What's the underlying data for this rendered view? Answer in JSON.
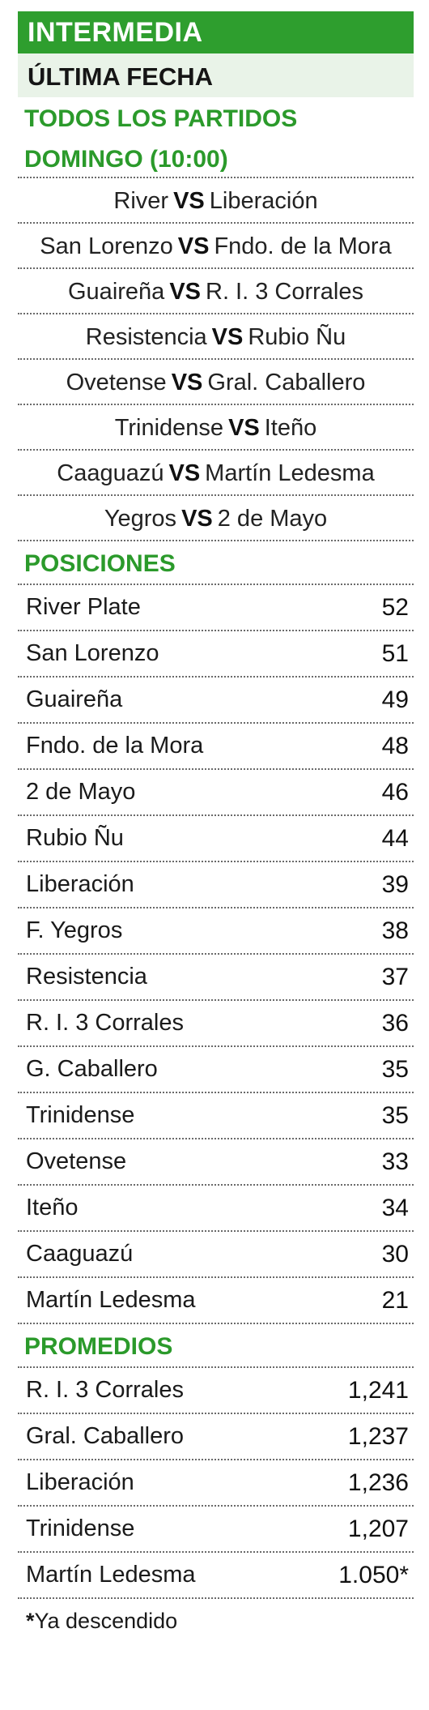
{
  "header": {
    "category": "INTERMEDIA",
    "subtitle": "ÚLTIMA FECHA"
  },
  "fixtures": {
    "title_line1": "TODOS LOS PARTIDOS",
    "title_line2": "DOMINGO (10:00)",
    "vs_label": "VS",
    "matches": [
      {
        "home": "River",
        "away": "Liberación"
      },
      {
        "home": "San Lorenzo",
        "away": "Fndo. de la Mora"
      },
      {
        "home": "Guaireña",
        "away": "R. I. 3 Corrales"
      },
      {
        "home": "Resistencia",
        "away": "Rubio Ñu"
      },
      {
        "home": "Ovetense",
        "away": "Gral. Caballero"
      },
      {
        "home": "Trinidense",
        "away": "Iteño"
      },
      {
        "home": "Caaguazú",
        "away": "Martín Ledesma"
      },
      {
        "home": "Yegros",
        "away": "2 de Mayo"
      }
    ]
  },
  "standings": {
    "title": "POSICIONES",
    "rows": [
      {
        "team": "River Plate",
        "points": "52"
      },
      {
        "team": "San Lorenzo",
        "points": "51"
      },
      {
        "team": "Guaireña",
        "points": "49"
      },
      {
        "team": "Fndo. de la Mora",
        "points": "48"
      },
      {
        "team": "2 de Mayo",
        "points": "46"
      },
      {
        "team": "Rubio Ñu",
        "points": "44"
      },
      {
        "team": "Liberación",
        "points": "39"
      },
      {
        "team": "F. Yegros",
        "points": "38"
      },
      {
        "team": "Resistencia",
        "points": "37"
      },
      {
        "team": "R. I. 3 Corrales",
        "points": "36"
      },
      {
        "team": "G. Caballero",
        "points": "35"
      },
      {
        "team": "Trinidense",
        "points": "35"
      },
      {
        "team": "Ovetense",
        "points": "33"
      },
      {
        "team": "Iteño",
        "points": "34"
      },
      {
        "team": "Caaguazú",
        "points": "30"
      },
      {
        "team": "Martín Ledesma",
        "points": "21"
      }
    ]
  },
  "averages": {
    "title": "PROMEDIOS",
    "rows": [
      {
        "team": "R. I. 3 Corrales",
        "average": "1,241"
      },
      {
        "team": "Gral. Caballero",
        "average": "1,237"
      },
      {
        "team": "Liberación",
        "average": "1,236"
      },
      {
        "team": "Trinidense",
        "average": "1,207"
      },
      {
        "team": "Martín Ledesma",
        "average": "1.050*"
      }
    ]
  },
  "footnote": {
    "star": "*",
    "text": "Ya descendido"
  },
  "colors": {
    "brand_green": "#2e9e2e",
    "title_green": "#2b9a2b",
    "subtitle_bg": "#e9f3e8",
    "text": "#1a1a1a"
  }
}
